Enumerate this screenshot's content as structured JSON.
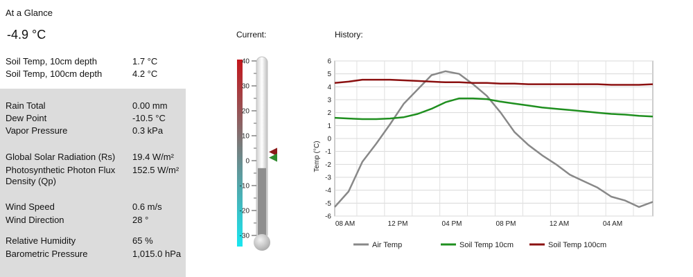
{
  "title": "At a Glance",
  "current_temp": "-4.9 °C",
  "soil": [
    {
      "label": "Soil Temp, 10cm depth",
      "value": "1.7 °C"
    },
    {
      "label": "Soil Temp, 100cm depth",
      "value": "4.2 °C"
    }
  ],
  "rain_group": [
    {
      "label": "Rain Total",
      "value": "0.00 mm"
    },
    {
      "label": "Dew Point",
      "value": "-10.5 °C"
    },
    {
      "label": "Vapor Pressure",
      "value": "0.3 kPa"
    }
  ],
  "solar_group": [
    {
      "label": "Global Solar Radiation (Rs)",
      "value": "19.4 W/m²"
    },
    {
      "label": "Photosynthetic Photon Flux Density (Qp)",
      "value": "152.5 W/m²"
    }
  ],
  "wind_group": [
    {
      "label": "Wind Speed",
      "value": "0.6 m/s"
    },
    {
      "label": "Wind Direction",
      "value": "28 °"
    }
  ],
  "humidity_group": [
    {
      "label": "Relative Humidity",
      "value": "65 %"
    },
    {
      "label": "Barometric Pressure",
      "value": "1,015.0 hPa"
    }
  ],
  "current_label": "Current:",
  "history_label": "History:",
  "thermometer": {
    "min": -30,
    "max": 40,
    "ticks": [
      "40",
      "30",
      "20",
      "10",
      "0",
      "-10",
      "-20",
      "-30"
    ],
    "markers": [
      {
        "value": 3.5,
        "color": "#8b1a1a"
      },
      {
        "value": 1.2,
        "color": "#2e8b2e"
      }
    ]
  },
  "chart_data": {
    "type": "line",
    "ylabel": "Temp (°C)",
    "ylim": [
      -6,
      6
    ],
    "yticks": [
      "6",
      "5",
      "4",
      "3",
      "2",
      "1",
      "0",
      "-1",
      "-2",
      "-3",
      "-4",
      "-5",
      "-6"
    ],
    "xticks": [
      "08 AM",
      "12 PM",
      "04 PM",
      "08 PM",
      "12 AM",
      "04 AM"
    ],
    "x": [
      0,
      1,
      2,
      3,
      4,
      5,
      6,
      7,
      8,
      9,
      10,
      11,
      12,
      13,
      14,
      15,
      16,
      17,
      18,
      19,
      20,
      21,
      22,
      23
    ],
    "grid": true,
    "legend_position": "bottom",
    "series": [
      {
        "name": "Air Temp",
        "color": "#888888",
        "values": [
          -5.3,
          -4.1,
          -1.8,
          -0.4,
          1.1,
          2.7,
          3.8,
          4.9,
          5.2,
          5.0,
          4.2,
          3.3,
          2.0,
          0.5,
          -0.5,
          -1.3,
          -2.0,
          -2.8,
          -3.3,
          -3.8,
          -4.5,
          -4.8,
          -5.3,
          -4.9
        ]
      },
      {
        "name": "Soil Temp 10cm",
        "color": "#1f8f1f",
        "values": [
          1.6,
          1.55,
          1.5,
          1.5,
          1.55,
          1.65,
          1.9,
          2.3,
          2.8,
          3.1,
          3.1,
          3.05,
          2.85,
          2.7,
          2.55,
          2.4,
          2.3,
          2.2,
          2.1,
          2.0,
          1.9,
          1.85,
          1.75,
          1.7
        ]
      },
      {
        "name": "Soil Temp 100cm",
        "color": "#8b1010",
        "values": [
          4.3,
          4.4,
          4.55,
          4.55,
          4.55,
          4.5,
          4.45,
          4.4,
          4.35,
          4.35,
          4.3,
          4.3,
          4.25,
          4.25,
          4.2,
          4.2,
          4.2,
          4.2,
          4.2,
          4.2,
          4.15,
          4.15,
          4.15,
          4.2
        ]
      }
    ]
  }
}
